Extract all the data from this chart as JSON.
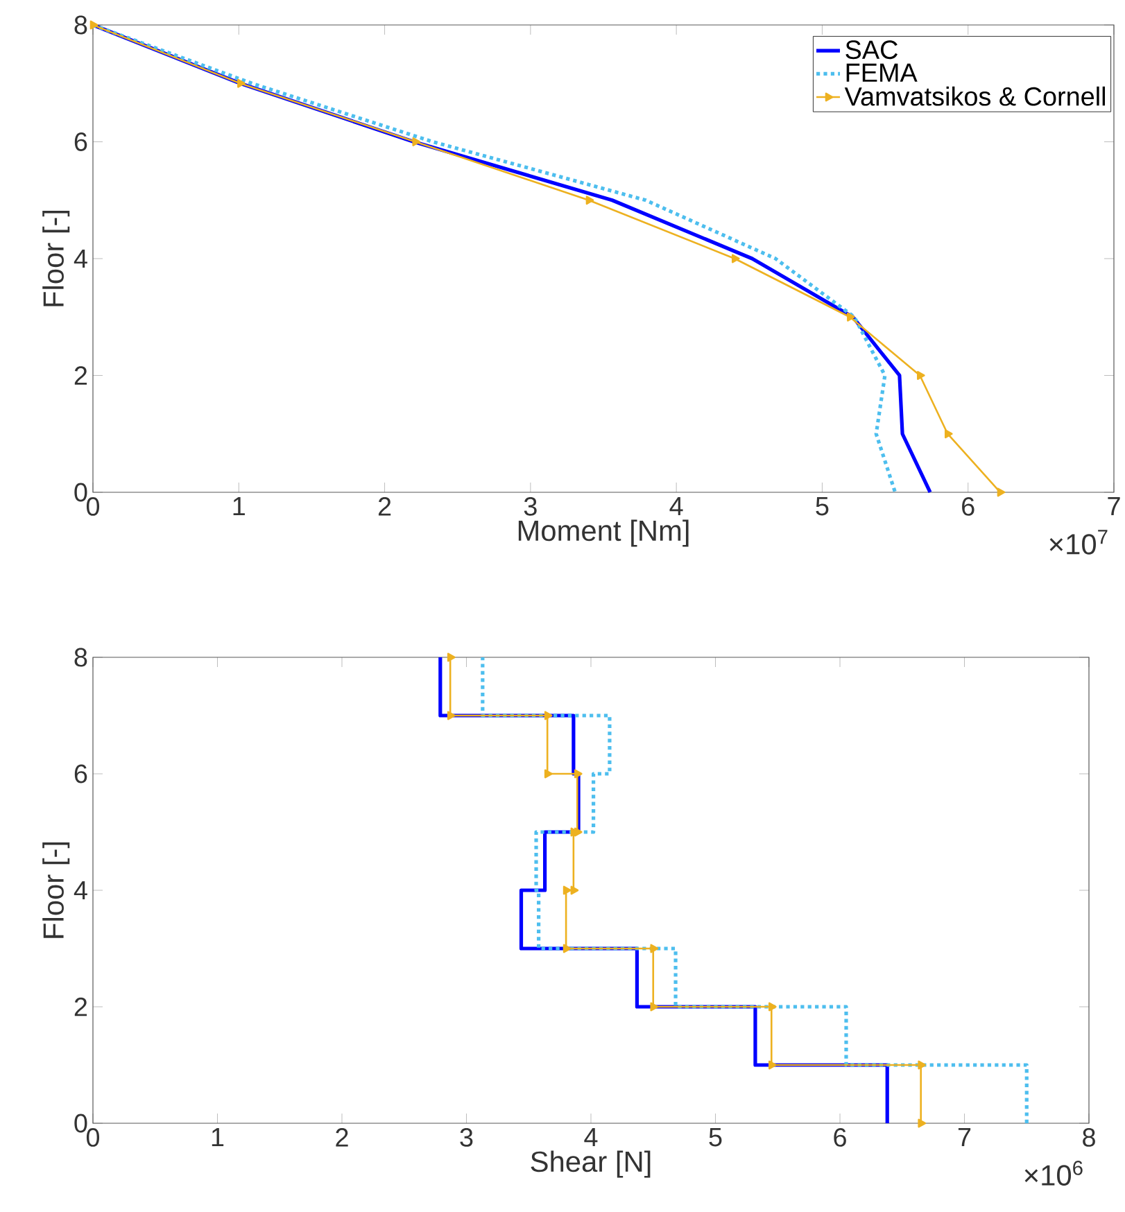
{
  "chart_data": [
    {
      "type": "line",
      "xlabel": "Moment [Nm]",
      "ylabel": "Floor [-]",
      "annotations": [
        "×10$^{7}$"
      ],
      "xlim": [
        0,
        7
      ],
      "xticks": [
        0,
        1,
        2,
        3,
        4,
        5,
        6,
        7
      ],
      "ylim": [
        0,
        8
      ],
      "yticks": [
        0,
        2,
        4,
        6,
        8
      ],
      "grid": false,
      "legend": "top right",
      "series": [
        {
          "name": "SAC",
          "color": "#0000ff",
          "line_style": "solid",
          "marker": "none",
          "x": [
            0,
            1.01,
            2.2,
            3.56,
            4.52,
            5.21,
            5.53,
            5.55,
            5.74
          ],
          "values": [
            8,
            7,
            6,
            5,
            4,
            3,
            2,
            1,
            0
          ]
        },
        {
          "name": "FEMA",
          "color": "#4dbeee",
          "line_style": "dotted",
          "marker": "none",
          "x": [
            0,
            1.09,
            2.33,
            3.79,
            4.68,
            5.22,
            5.43,
            5.37,
            5.5
          ],
          "values": [
            8,
            7,
            6,
            5,
            4,
            3,
            2,
            1,
            0
          ]
        },
        {
          "name": "Vamvatsikos & Cornell",
          "color": "#edb120",
          "line_style": "solid",
          "marker": "triangle",
          "x": [
            0,
            1.01,
            2.21,
            3.4,
            4.4,
            5.19,
            5.67,
            5.86,
            6.22
          ],
          "values": [
            8,
            7,
            6,
            5,
            4,
            3,
            2,
            1,
            0
          ]
        }
      ]
    },
    {
      "type": "line",
      "xlabel": "Shear [N]",
      "ylabel": "Floor [-]",
      "annotations": [
        "×10$^{6}$"
      ],
      "xlim": [
        0,
        8
      ],
      "xticks": [
        0,
        1,
        2,
        3,
        4,
        5,
        6,
        7,
        8
      ],
      "ylim": [
        0,
        8
      ],
      "yticks": [
        0,
        2,
        4,
        6,
        8
      ],
      "grid": false,
      "legend": false,
      "series": [
        {
          "color": "#0000ff",
          "line_style": "solid",
          "marker": "none",
          "x": [
            6.38,
            6.38,
            5.32,
            5.32,
            4.37,
            4.37,
            3.44,
            3.44,
            3.63,
            3.63,
            3.9,
            3.9,
            3.86,
            3.86,
            2.79,
            2.79
          ],
          "values": [
            0,
            1,
            1,
            2,
            2,
            3,
            3,
            4,
            4,
            5,
            5,
            6,
            6,
            7,
            7,
            8
          ]
        },
        {
          "color": "#4dbeee",
          "line_style": "dotted",
          "marker": "none",
          "x": [
            7.5,
            7.5,
            6.05,
            6.05,
            4.68,
            4.68,
            3.58,
            3.58,
            3.56,
            3.56,
            4.02,
            4.02,
            4.15,
            4.15,
            3.13,
            3.13
          ],
          "values": [
            0,
            1,
            1,
            2,
            2,
            3,
            3,
            4,
            4,
            5,
            5,
            6,
            6,
            7,
            7,
            8
          ]
        },
        {
          "color": "#edb120",
          "line_style": "solid",
          "marker": "triangle",
          "x": [
            6.65,
            6.65,
            5.45,
            5.45,
            4.5,
            4.5,
            3.8,
            3.8,
            3.86,
            3.86,
            3.89,
            3.89,
            3.65,
            3.65,
            2.87,
            2.87
          ],
          "values": [
            0,
            1,
            1,
            2,
            2,
            3,
            3,
            4,
            4,
            5,
            5,
            6,
            6,
            7,
            7,
            8
          ]
        }
      ]
    }
  ]
}
